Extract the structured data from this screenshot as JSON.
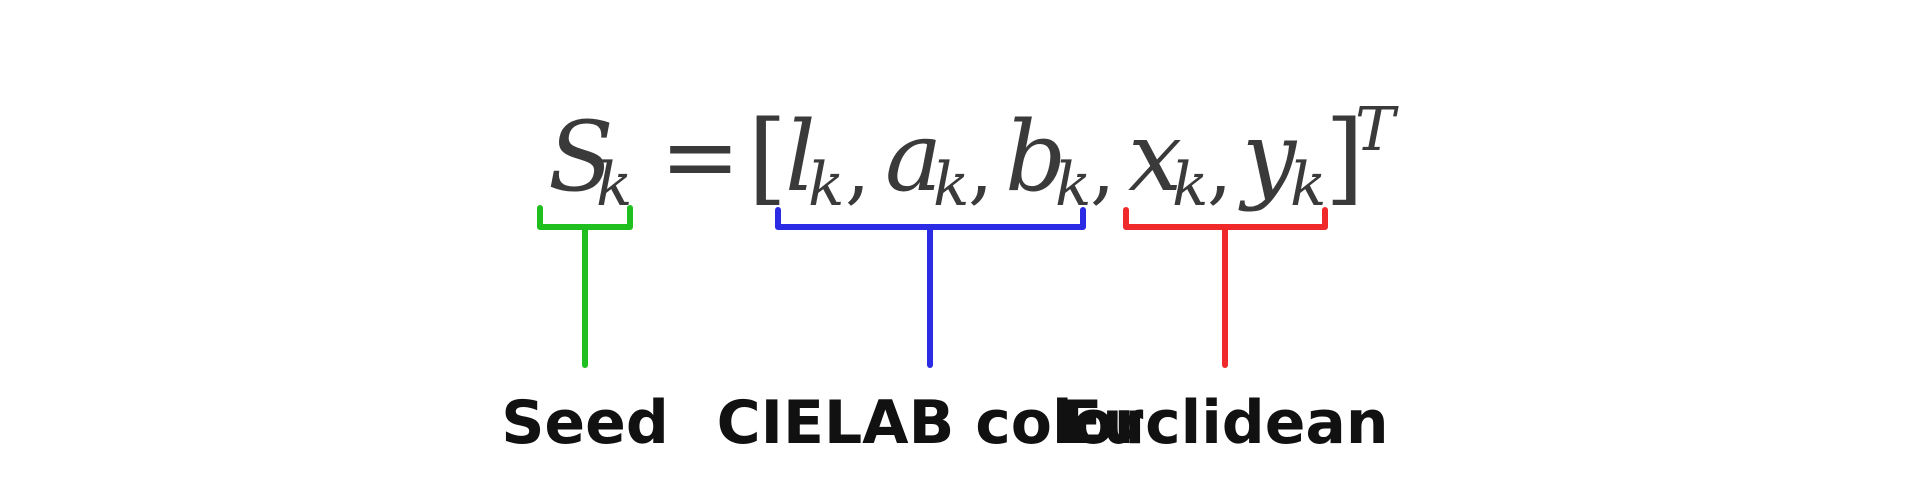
{
  "formula": {
    "lhs_symbol": "S",
    "lhs_subscript": "k",
    "equals": "=",
    "open_bracket": "[",
    "close_bracket": "]",
    "superscript": "T",
    "separator": ",",
    "terms": [
      {
        "symbol": "l",
        "subscript": "k"
      },
      {
        "symbol": "a",
        "subscript": "k"
      },
      {
        "symbol": "b",
        "subscript": "k"
      },
      {
        "symbol": "x",
        "subscript": "k"
      },
      {
        "symbol": "y",
        "subscript": "k"
      }
    ]
  },
  "annotations": {
    "seed": {
      "label": "Seed",
      "color": "#1fbf1f"
    },
    "cielab": {
      "label": "CIELAB color",
      "color": "#2b2be6"
    },
    "euclidean": {
      "label": "Euclidean",
      "color": "#f02a2a"
    }
  }
}
